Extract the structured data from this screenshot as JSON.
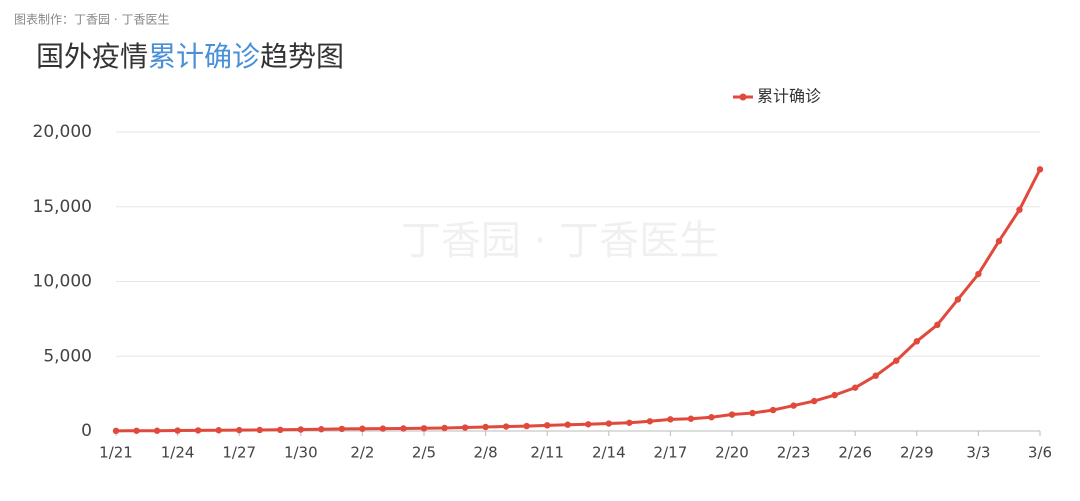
{
  "header": {
    "credit": "图表制作：丁香园 · 丁香医生"
  },
  "watermark": "丁香园 · 丁香医生",
  "chart_data": {
    "type": "line",
    "title_prefix": "国外疫情",
    "title_highlight": "累计确诊",
    "title_suffix": "趋势图",
    "categories": [
      "1/21",
      null,
      null,
      "1/24",
      null,
      null,
      "1/27",
      null,
      null,
      "1/30",
      null,
      null,
      "2/2",
      null,
      null,
      "2/5",
      null,
      null,
      "2/8",
      null,
      null,
      "2/11",
      null,
      null,
      "2/14",
      null,
      null,
      "2/17",
      null,
      null,
      "2/20",
      null,
      null,
      "2/23",
      null,
      null,
      "2/26",
      null,
      null,
      "2/29",
      null,
      null,
      "3/3",
      null,
      null,
      "3/6"
    ],
    "series": [
      {
        "name": "累计确诊",
        "color": "#e0493b",
        "values": [
          10,
          15,
          20,
          30,
          40,
          50,
          60,
          70,
          80,
          100,
          120,
          140,
          150,
          160,
          170,
          180,
          200,
          230,
          270,
          300,
          330,
          380,
          420,
          450,
          500,
          550,
          650,
          780,
          820,
          920,
          1100,
          1200,
          1400,
          1700,
          2000,
          2400,
          2900,
          3700,
          4700,
          6000,
          7100,
          8800,
          10500,
          12700,
          14800,
          17500
        ]
      }
    ],
    "ylim": [
      0,
      20000
    ],
    "yticks": [
      0,
      {
        "value": 5000,
        "label": "5,000"
      },
      {
        "value": 10000,
        "label": "10,000"
      },
      {
        "value": 15000,
        "label": "15,000"
      },
      {
        "value": 20000,
        "label": "20,000"
      }
    ],
    "grid": true,
    "legend": "top-right"
  }
}
